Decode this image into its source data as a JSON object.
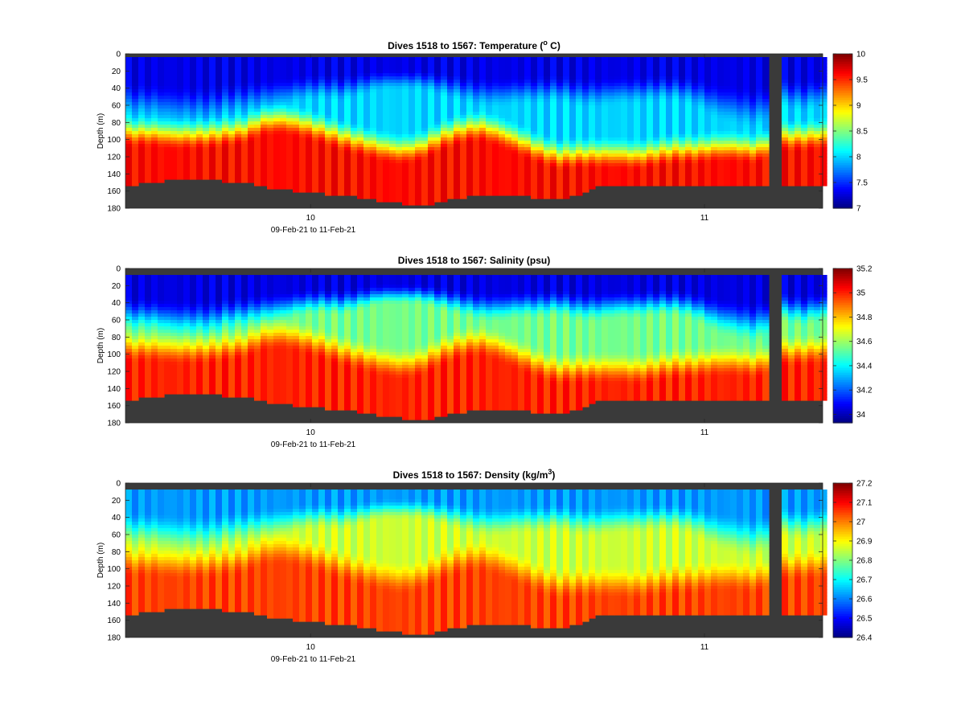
{
  "colors": {
    "bottom_mask": "#3a3a3a",
    "axes_box": "#262626",
    "colormap": "jet"
  },
  "chart_data": [
    {
      "type": "heatmap",
      "title": "Dives 1518 to 1567: Temperature (",
      "title_sup": "o",
      "title_tail": " C)",
      "xlabel": "09-Feb-21 to 11-Feb-21",
      "ylabel": "Depth (m)",
      "xlim": [
        9.53,
        11.3
      ],
      "ylim": [
        0,
        180
      ],
      "y_reversed": true,
      "x_ticks": [
        10,
        11
      ],
      "x_tick_labels": [
        "10",
        "11"
      ],
      "y_ticks": [
        0,
        20,
        40,
        60,
        80,
        100,
        120,
        140,
        160,
        180
      ],
      "y_tick_labels": [
        "0",
        "20",
        "40",
        "60",
        "80",
        "100",
        "120",
        "140",
        "160",
        "180"
      ],
      "colorbar": {
        "range": [
          7,
          10
        ],
        "ticks": [
          7,
          7.5,
          8,
          8.5,
          9,
          9.5,
          10
        ],
        "tick_labels": [
          "7",
          "7.5",
          "8",
          "8.5",
          "9",
          "9.5",
          "10"
        ]
      },
      "surface_value": 7.3,
      "deep_value": 9.6,
      "mix_value": 8.0,
      "mix_top": 20,
      "top_gap_depth": 3
    },
    {
      "type": "heatmap",
      "title": "Dives 1518 to 1567: Salinity (psu)",
      "title_sup": "",
      "title_tail": "",
      "xlabel": "09-Feb-21 to 11-Feb-21",
      "ylabel": "Depth (m)",
      "xlim": [
        9.53,
        11.3
      ],
      "ylim": [
        0,
        180
      ],
      "y_reversed": true,
      "x_ticks": [
        10,
        11
      ],
      "x_tick_labels": [
        "10",
        "11"
      ],
      "y_ticks": [
        0,
        20,
        40,
        60,
        80,
        100,
        120,
        140,
        160,
        180
      ],
      "y_tick_labels": [
        "0",
        "20",
        "40",
        "60",
        "80",
        "100",
        "120",
        "140",
        "160",
        "180"
      ],
      "colorbar": {
        "range": [
          33.93,
          35.2
        ],
        "ticks": [
          34,
          34.2,
          34.4,
          34.6,
          34.8,
          35,
          35.2
        ],
        "tick_labels": [
          "34",
          "34.2",
          "34.4",
          "34.6",
          "34.8",
          "35",
          "35.2"
        ]
      },
      "surface_value": 34.05,
      "deep_value": 35.0,
      "mix_value": 34.55,
      "mix_top": 25,
      "top_gap_depth": 8
    },
    {
      "type": "heatmap",
      "title": "Dives 1518 to 1567: Density (kg/m",
      "title_sup": "3",
      "title_tail": ")",
      "xlabel": "09-Feb-21 to 11-Feb-21",
      "ylabel": "Depth (m)",
      "xlim": [
        9.53,
        11.3
      ],
      "ylim": [
        0,
        180
      ],
      "y_reversed": true,
      "x_ticks": [
        10,
        11
      ],
      "x_tick_labels": [
        "10",
        "11"
      ],
      "y_ticks": [
        0,
        20,
        40,
        60,
        80,
        100,
        120,
        140,
        160,
        180
      ],
      "y_tick_labels": [
        "0",
        "20",
        "40",
        "60",
        "80",
        "100",
        "120",
        "140",
        "160",
        "180"
      ],
      "colorbar": {
        "range": [
          26.4,
          27.2
        ],
        "ticks": [
          26.4,
          26.5,
          26.6,
          26.7,
          26.8,
          26.9,
          27,
          27.1,
          27.2
        ],
        "tick_labels": [
          "26.4",
          "26.5",
          "26.6",
          "26.7",
          "26.8",
          "26.9",
          "27",
          "27.1",
          "27.2"
        ]
      },
      "surface_value": 26.62,
      "deep_value": 27.05,
      "mix_value": 26.86,
      "mix_top": 20,
      "top_gap_depth": 8
    }
  ],
  "profiles": {
    "gap_time_ranges": [
      [
        9.8,
        9.815
      ],
      [
        11.16,
        11.19
      ]
    ],
    "x": [
      9.55,
      9.6,
      9.65,
      9.7,
      9.75,
      9.78,
      9.83,
      9.88,
      9.93,
      9.98,
      10.03,
      10.08,
      10.13,
      10.18,
      10.23,
      10.28,
      10.33,
      10.38,
      10.43,
      10.48,
      10.53,
      10.58,
      10.63,
      10.68,
      10.73,
      10.78,
      10.83,
      10.88,
      10.93,
      10.98,
      11.03,
      11.08,
      11.13,
      11.2,
      11.25,
      11.29
    ],
    "seafloor_depth": [
      153,
      150,
      147,
      146,
      147,
      148,
      150,
      155,
      158,
      161,
      163,
      164,
      168,
      172,
      174,
      176,
      173,
      168,
      164,
      163,
      165,
      168,
      170,
      165,
      155,
      155,
      154,
      155,
      155,
      154,
      154,
      154,
      155,
      152,
      153,
      153
    ],
    "thermocline_depth": [
      95,
      95,
      98,
      98,
      97,
      95,
      92,
      82,
      80,
      85,
      92,
      100,
      106,
      112,
      116,
      112,
      100,
      92,
      88,
      95,
      105,
      115,
      122,
      120,
      120,
      120,
      122,
      118,
      115,
      115,
      112,
      112,
      115,
      100,
      100,
      98
    ],
    "mixed_layer_depth": [
      55,
      55,
      60,
      60,
      60,
      55,
      52,
      48,
      45,
      40,
      38,
      40,
      35,
      30,
      30,
      30,
      35,
      40,
      45,
      45,
      42,
      42,
      40,
      45,
      45,
      42,
      42,
      40,
      40,
      45,
      55,
      60,
      65,
      45,
      50,
      45
    ]
  }
}
